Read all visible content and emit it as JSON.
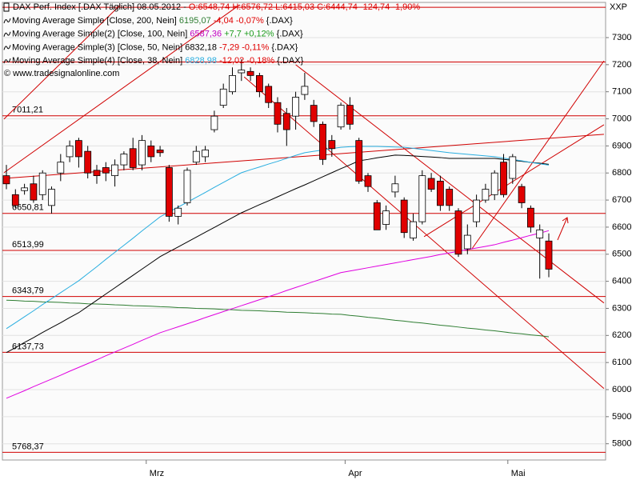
{
  "chart_data": {
    "type": "candlestick",
    "title": "DAX Perf. Index [.DAX Täglich] 08.05.2012 -",
    "quote": "O:6548,74 H:6576,72 L:6415,03 C:6444,74 -124,74 -1,90%",
    "copyright": "© www.tradesignalonline.com",
    "y_axis_label": "XXP",
    "categories": [
      null,
      null,
      null,
      null,
      null,
      null,
      null,
      null,
      null,
      null,
      null,
      null,
      null,
      null,
      null,
      null,
      "Mrz",
      null,
      null,
      null,
      null,
      null,
      null,
      null,
      null,
      null,
      null,
      null,
      null,
      null,
      null,
      null,
      null,
      null,
      null,
      null,
      null,
      null,
      "Apr",
      null,
      null,
      null,
      null,
      null,
      null,
      null,
      null,
      null,
      null,
      null,
      null,
      null,
      null,
      null,
      null,
      null,
      "Mai",
      null,
      null,
      null,
      null
    ],
    "ohlc": {
      "open": [
        6790,
        6720,
        6735,
        6760,
        6720,
        6680,
        6800,
        6860,
        6920,
        6880,
        6810,
        6820,
        6790,
        6830,
        6890,
        6830,
        6900,
        6885,
        6820,
        6640,
        6690,
        6840,
        6860,
        6960,
        7050,
        7100,
        7170,
        7175,
        7160,
        7120,
        7060,
        7020,
        7010,
        7090,
        7050,
        6980,
        6920,
        6970,
        7050,
        6920,
        6790,
        6690,
        6610,
        6730,
        6700,
        6560,
        6620,
        6780,
        6770,
        6740,
        6660,
        6520,
        6620,
        6700,
        6720,
        6840,
        6780,
        6750,
        6670,
        6560,
        6548.74
      ],
      "high": [
        6830,
        6740,
        6760,
        6790,
        6810,
        6750,
        6870,
        6920,
        6930,
        6900,
        6830,
        6840,
        6850,
        6880,
        6930,
        6940,
        6920,
        6900,
        6830,
        6680,
        6820,
        6900,
        6900,
        7030,
        7130,
        7190,
        7220,
        7190,
        7170,
        7130,
        7080,
        7040,
        7100,
        7170,
        7070,
        6990,
        6940,
        7060,
        7080,
        6930,
        6800,
        6700,
        6680,
        6790,
        6710,
        6650,
        6810,
        6800,
        6790,
        6750,
        6670,
        6610,
        6720,
        6760,
        6810,
        6870,
        6870,
        6760,
        6680,
        6610,
        6576.72
      ],
      "low": [
        6740,
        6670,
        6720,
        6690,
        6700,
        6650,
        6770,
        6840,
        6820,
        6780,
        6760,
        6770,
        6750,
        6810,
        6810,
        6810,
        6840,
        6860,
        6620,
        6610,
        6680,
        6830,
        6840,
        6950,
        7040,
        7090,
        7140,
        7140,
        7080,
        7040,
        6950,
        6900,
        6960,
        7070,
        6970,
        6830,
        6860,
        6960,
        6960,
        6760,
        6730,
        6590,
        6590,
        6710,
        6560,
        6550,
        6610,
        6730,
        6660,
        6660,
        6490,
        6500,
        6600,
        6690,
        6700,
        6710,
        6760,
        6670,
        6580,
        6410,
        6415.03
      ],
      "close": [
        6760,
        6680,
        6745,
        6700,
        6800,
        6740,
        6840,
        6900,
        6860,
        6800,
        6790,
        6800,
        6830,
        6870,
        6820,
        6920,
        6860,
        6875,
        6640,
        6670,
        6810,
        6880,
        6885,
        7010,
        7110,
        7160,
        7180,
        7160,
        7100,
        7060,
        6980,
        6960,
        7080,
        7120,
        6990,
        6850,
        6890,
        7050,
        6980,
        6770,
        6750,
        6590,
        6660,
        6760,
        6580,
        6620,
        6790,
        6740,
        6680,
        6680,
        6500,
        6570,
        6700,
        6740,
        6800,
        6720,
        6860,
        6690,
        6600,
        6590,
        6444.74
      ]
    },
    "up_color": "#ffffff",
    "down_color": "#e00000",
    "series": [
      {
        "name": "Moving Average Simple [Close, 200, Nein]",
        "legend_value": "6195,07",
        "legend_change": "-4,04 -0,07%",
        "legend_tail": "{.DAX}",
        "color": "#2e7d32",
        "value_color": "#2e7d32",
        "change_color": "#e00000",
        "values": [
          6330,
          6329,
          6327,
          6326,
          6324,
          6323,
          6322,
          6320,
          6319,
          6317,
          6316,
          6315,
          6313,
          6312,
          6310,
          6309,
          6308,
          6306,
          6305,
          6303,
          6302,
          6300,
          6299,
          6298,
          6296,
          6295,
          6293,
          6292,
          6291,
          6289,
          6288,
          6286,
          6285,
          6284,
          6282,
          6281,
          6279,
          6278,
          6274,
          6271,
          6267,
          6264,
          6260,
          6256,
          6253,
          6249,
          6246,
          6242,
          6238,
          6235,
          6231,
          6227,
          6224,
          6220,
          6217,
          6213,
          6209,
          6206,
          6202,
          6199,
          6195
        ]
      },
      {
        "name": "Moving Average Simple(2) [Close, 100, Nein]",
        "legend_value": "6587,36",
        "legend_change": "+7,7 +0,12%",
        "legend_tail": "{.DAX}",
        "color": "#e000e0",
        "value_color": "#c000c0",
        "change_color": "#1a9a1a",
        "values": [
          5968,
          5982,
          5996,
          6011,
          6025,
          6039,
          6053,
          6068,
          6082,
          6096,
          6110,
          6125,
          6139,
          6153,
          6167,
          6182,
          6196,
          6210,
          6221,
          6232,
          6243,
          6254,
          6266,
          6277,
          6288,
          6299,
          6310,
          6321,
          6332,
          6343,
          6354,
          6366,
          6377,
          6388,
          6399,
          6410,
          6421,
          6432,
          6438,
          6444,
          6450,
          6456,
          6462,
          6468,
          6474,
          6480,
          6486,
          6492,
          6499,
          6505,
          6511,
          6517,
          6523,
          6529,
          6535,
          6544,
          6552,
          6561,
          6570,
          6578,
          6587
        ]
      },
      {
        "name": "Moving Average Simple(3) [Close, 50, Nein]",
        "legend_value": "6832,18",
        "legend_change": "-7,29 -0,11%",
        "legend_tail": "{.DAX}",
        "color": "#000000",
        "value_color": "#000000",
        "change_color": "#e00000",
        "values": [
          6137,
          6155,
          6174,
          6192,
          6211,
          6229,
          6247,
          6266,
          6284,
          6307,
          6330,
          6353,
          6376,
          6399,
          6422,
          6445,
          6468,
          6491,
          6509,
          6527,
          6545,
          6563,
          6581,
          6599,
          6617,
          6635,
          6653,
          6668,
          6683,
          6697,
          6712,
          6727,
          6742,
          6756,
          6771,
          6786,
          6801,
          6816,
          6830,
          6845,
          6850,
          6856,
          6861,
          6866,
          6865,
          6863,
          6861,
          6859,
          6857,
          6854,
          6854,
          6854,
          6854,
          6854,
          6854,
          6850,
          6847,
          6843,
          6839,
          6836,
          6832
        ]
      },
      {
        "name": "Moving Average Simple(4) [Close, 38, Nein]",
        "legend_value": "6828,98",
        "legend_change": "-12,02 -0,18%",
        "legend_tail": "{.DAX}",
        "color": "#29aee0",
        "value_color": "#29aee0",
        "change_color": "#e00000",
        "values": [
          6225,
          6247,
          6269,
          6291,
          6314,
          6336,
          6358,
          6380,
          6402,
          6428,
          6454,
          6481,
          6507,
          6533,
          6559,
          6586,
          6612,
          6638,
          6656,
          6674,
          6692,
          6710,
          6728,
          6747,
          6765,
          6783,
          6801,
          6812,
          6822,
          6833,
          6843,
          6854,
          6865,
          6875,
          6880,
          6885,
          6890,
          6895,
          6897,
          6898,
          6898,
          6898,
          6897,
          6896,
          6895,
          6891,
          6887,
          6883,
          6879,
          6875,
          6872,
          6869,
          6866,
          6863,
          6860,
          6855,
          6850,
          6845,
          6839,
          6834,
          6829
        ]
      }
    ],
    "levels": [
      7412,
      7210,
      {
        "value": 7011.21,
        "label": "7011,21"
      },
      {
        "value": 6650.81,
        "label": "6650,81"
      },
      {
        "value": 6513.99,
        "label": "6513,99"
      },
      {
        "value": 6343.79,
        "label": "6343,79"
      },
      {
        "value": 6137.73,
        "label": "6137,73"
      },
      {
        "value": 5768.37,
        "label": "5768,37"
      }
    ],
    "level_color": "#d00000",
    "trendlines": [
      {
        "x": [
          -0.27,
          25.8
        ],
        "y": [
          6801,
          7421
        ]
      },
      {
        "x": [
          -0.27,
          12.6
        ],
        "y": [
          6999,
          7421
        ]
      },
      {
        "x": [
          -0.27,
          66.1
        ],
        "y": [
          6780,
          6943
        ]
      },
      {
        "x": [
          32.0,
          66.1
        ],
        "y": [
          7200,
          6320
        ]
      },
      {
        "x": [
          26.3,
          66.1
        ],
        "y": [
          7155,
          6004
        ]
      },
      {
        "x": [
          46.2,
          66.1
        ],
        "y": [
          6565,
          6978
        ]
      },
      {
        "x": [
          51.5,
          66.1
        ],
        "y": [
          6520,
          7214
        ]
      }
    ],
    "ylim": [
      5740,
      7430
    ],
    "yticks": [
      5800,
      5900,
      6000,
      6100,
      6200,
      6300,
      6400,
      6500,
      6600,
      6700,
      6800,
      6900,
      7000,
      7100,
      7200,
      7300
    ],
    "grid": true
  }
}
